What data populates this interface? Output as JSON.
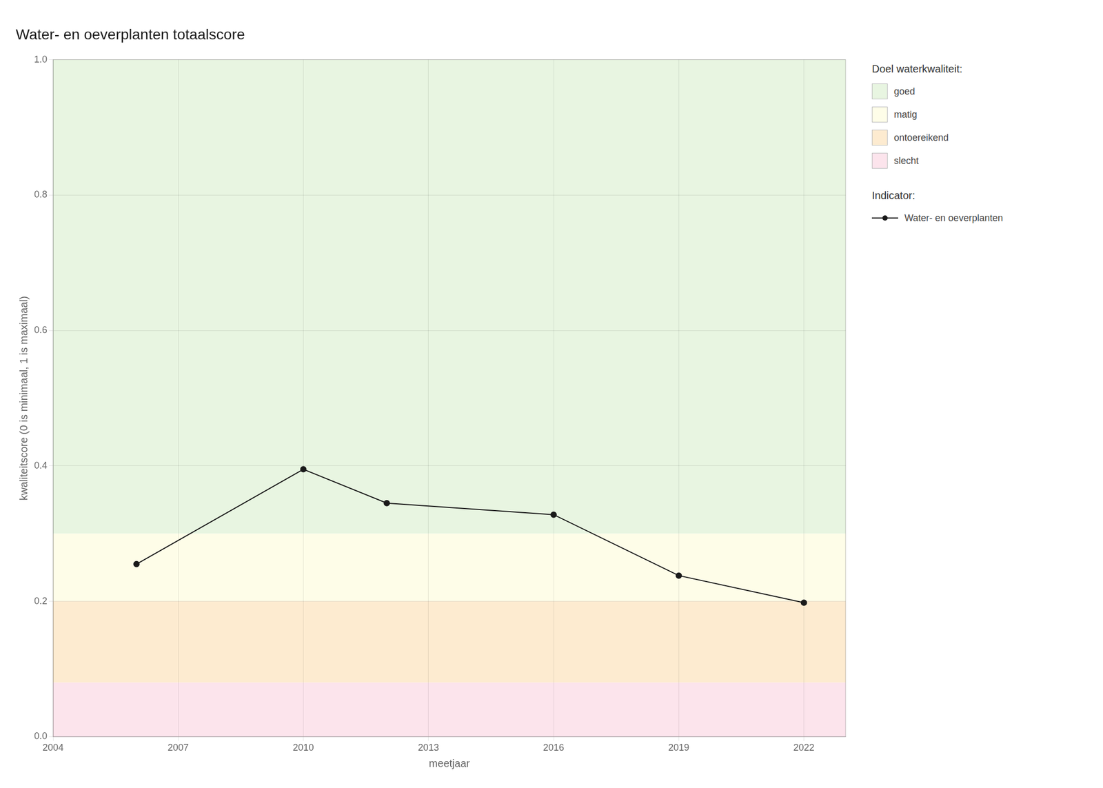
{
  "chart_data": {
    "type": "line",
    "title": "Water- en oeverplanten totaalscore",
    "x_label": "meetjaar",
    "y_label": "kwaliteitscore (0 is minimaal, 1 is maximaal)",
    "x": [
      2006,
      2010,
      2012,
      2016,
      2019,
      2022
    ],
    "series": [
      {
        "name": "Water- en oeverplanten",
        "color": "#1a1a1a",
        "marker": "circle",
        "line_style": "solid",
        "values": [
          0.255,
          0.395,
          0.345,
          0.328,
          0.238,
          0.198
        ]
      }
    ],
    "xlim": [
      2004,
      2023
    ],
    "ylim": [
      0.0,
      1.0
    ],
    "xticks": [
      2004,
      2007,
      2010,
      2013,
      2016,
      2019,
      2022
    ],
    "yticks": [
      {
        "value": 0.0,
        "label": "0.0"
      },
      0.2,
      0.4,
      0.6,
      0.8,
      {
        "value": 1.0,
        "label": "1.0"
      }
    ],
    "bands_title": "Doel waterkwaliteit:",
    "series_title": "Indicator:",
    "bands": [
      {
        "name": "goed",
        "min": 0.3,
        "max": 1.0,
        "color": "#e8f5e1"
      },
      {
        "name": "matig",
        "min": 0.2,
        "max": 0.3,
        "color": "#fefde8"
      },
      {
        "name": "ontoereikend",
        "min": 0.08,
        "max": 0.2,
        "color": "#fdebd0"
      },
      {
        "name": "slecht",
        "min": 0.0,
        "max": 0.08,
        "color": "#fce4ec"
      }
    ],
    "grid": true,
    "legend": "right"
  }
}
